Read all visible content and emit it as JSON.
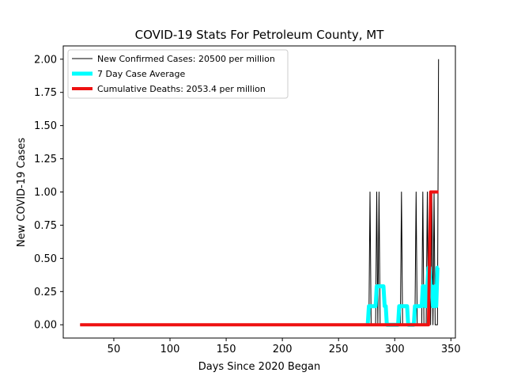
{
  "chart_data": {
    "type": "line",
    "title": "COVID-19 Stats For Petroleum County, MT",
    "xlabel": "Days Since 2020 Began",
    "ylabel": "New COVID-19 Cases",
    "xlim": [
      5,
      354
    ],
    "ylim": [
      -0.1,
      2.1
    ],
    "xticks": [
      50,
      100,
      150,
      200,
      250,
      300,
      350
    ],
    "yticks": [
      0.0,
      0.25,
      0.5,
      0.75,
      1.0,
      1.25,
      1.5,
      1.75,
      2.0
    ],
    "xtick_labels": [
      "50",
      "100",
      "150",
      "200",
      "250",
      "300",
      "350"
    ],
    "ytick_labels": [
      "0.00",
      "0.25",
      "0.50",
      "0.75",
      "1.00",
      "1.25",
      "1.50",
      "1.75",
      "2.00"
    ],
    "grid": false,
    "legend_position": "upper-left",
    "series": [
      {
        "name": "New Confirmed Cases: 20500 per million",
        "color": "#000000",
        "width": 1,
        "x": [
          20,
          277,
          278,
          279,
          283,
          284,
          285,
          286,
          287,
          305,
          306,
          307,
          318,
          319,
          320,
          324,
          325,
          326,
          328,
          329,
          330,
          331,
          332,
          333,
          334,
          335,
          336,
          337,
          338,
          339
        ],
        "y": [
          0,
          0,
          1,
          0,
          0,
          1,
          0,
          1,
          0,
          0,
          1,
          0,
          0,
          1,
          0,
          0,
          1,
          0,
          0,
          1,
          0,
          1,
          0,
          1,
          0,
          1,
          0,
          0,
          0,
          2
        ]
      },
      {
        "name": "7 Day Case Average",
        "color": "#00ffff",
        "width": 5,
        "x": [
          276,
          277,
          278,
          282,
          283,
          284,
          285,
          289,
          290,
          291,
          292,
          293,
          294,
          303,
          304,
          305,
          306,
          310,
          311,
          312,
          313,
          317,
          318,
          319,
          320,
          324,
          325,
          326,
          327,
          328,
          329,
          330,
          331,
          332,
          333,
          334,
          335,
          336,
          337,
          338,
          339
        ],
        "y": [
          0,
          0.14,
          0.14,
          0.14,
          0.14,
          0.29,
          0.29,
          0.29,
          0.29,
          0.14,
          0.14,
          0,
          0,
          0,
          0.14,
          0.14,
          0.14,
          0.14,
          0.14,
          0,
          0,
          0,
          0.14,
          0.14,
          0.14,
          0.14,
          0.29,
          0.29,
          0.14,
          0.14,
          0.29,
          0.43,
          0.43,
          0.29,
          0.29,
          0.14,
          0.14,
          0.29,
          0.14,
          0.43,
          0.43
        ]
      },
      {
        "name": "Cumulative Deaths: 2053.4 per million",
        "color": "#ee1111",
        "width": 4,
        "x": [
          20,
          330,
          331,
          332,
          339
        ],
        "y": [
          0,
          0,
          0.5,
          1,
          1
        ]
      }
    ]
  }
}
